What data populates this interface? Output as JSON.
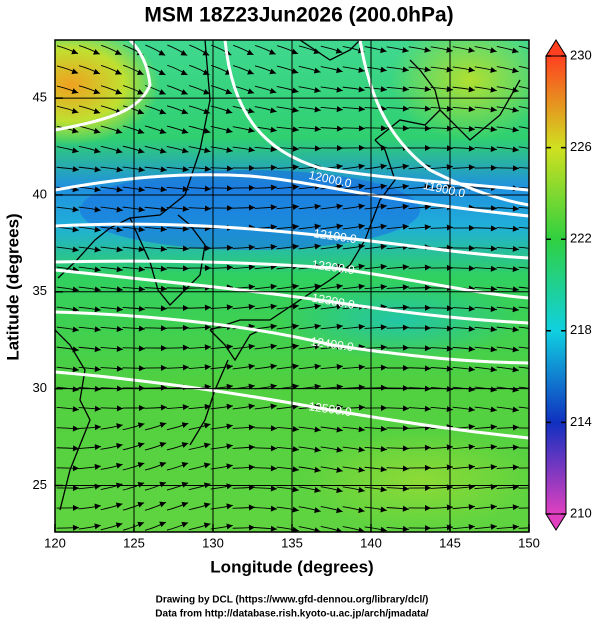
{
  "title": "MSM 18Z23Jun2026 (200.0hPa)",
  "map": {
    "xlabel": "Longitude (degrees)",
    "ylabel": "Latitude  (degrees)",
    "xlim": [
      120,
      150
    ],
    "ylim": [
      22.6,
      48
    ],
    "xticks": [
      120,
      125,
      130,
      135,
      140,
      145,
      150
    ],
    "yticks": [
      25,
      30,
      35,
      40,
      45
    ],
    "grid": true
  },
  "colorbar": {
    "range": [
      210,
      230
    ],
    "ticks": [
      210,
      214,
      218,
      222,
      226,
      230
    ],
    "colors": [
      "#e040c0",
      "#1030c0",
      "#10d0e0",
      "#30d040",
      "#d0e020",
      "#ff4020"
    ]
  },
  "contours": [
    {
      "value": 11900,
      "label": "11900.0"
    },
    {
      "value": 12000,
      "label": "12000.0"
    },
    {
      "value": 12100,
      "label": "12100.0"
    },
    {
      "value": 12200,
      "label": "12200.0"
    },
    {
      "value": 12300,
      "label": "12300.0"
    },
    {
      "value": 12400,
      "label": "12400.0"
    },
    {
      "value": 12500,
      "label": "12500.0"
    }
  ],
  "footer": [
    "Drawing by DCL (https://www.gfd-dennou.org/library/dcl/)",
    "Data from http://database.rish.kyoto-u.ac.jp/arch/jmadata/"
  ]
}
